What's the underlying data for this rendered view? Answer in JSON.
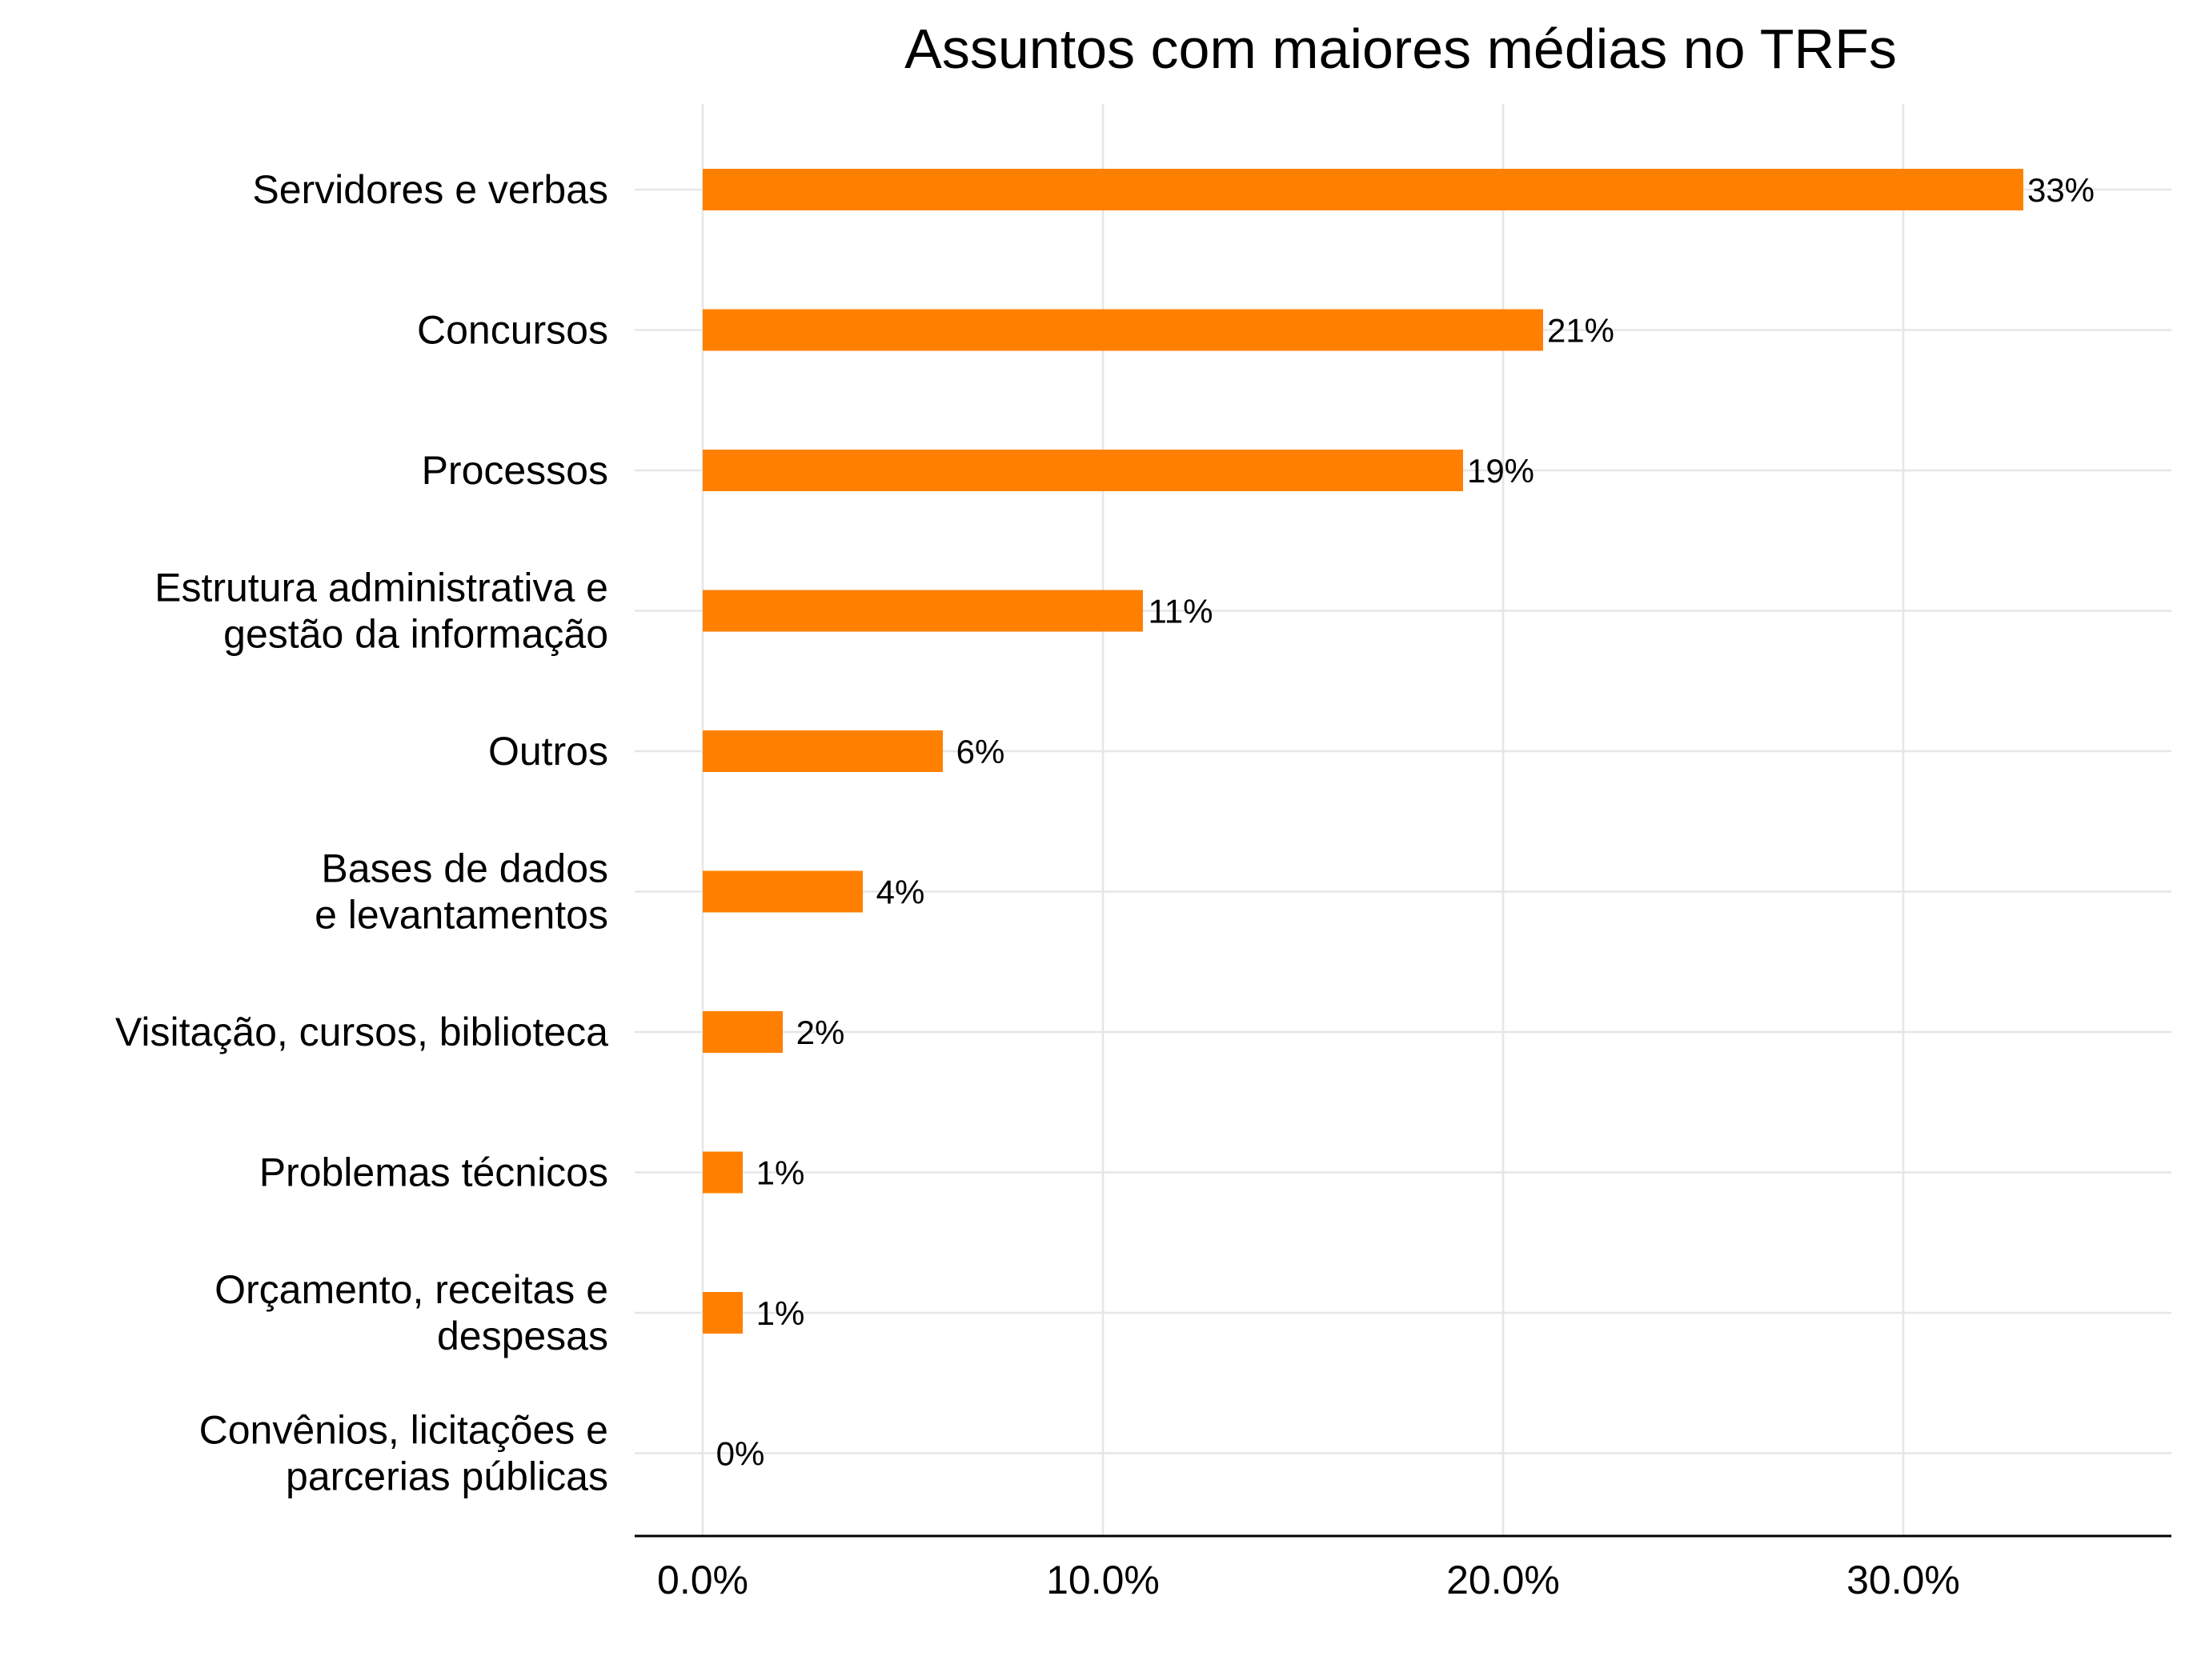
{
  "colors": {
    "bar": "#ff8000",
    "grid": "#e6e6e6",
    "axis": "#000000",
    "text": "#000000"
  },
  "chart_data": {
    "type": "bar",
    "orientation": "horizontal",
    "title": "Assuntos com maiores médias no TRFs",
    "xlabel": "",
    "ylabel": "",
    "categories": [
      [
        "Servidores e verbas"
      ],
      [
        "Concursos"
      ],
      [
        "Processos"
      ],
      [
        "Estrutura administrativa e",
        "gestão da informação"
      ],
      [
        "Outros"
      ],
      [
        "Bases de dados",
        "e levantamentos"
      ],
      [
        "Visitação, cursos, biblioteca"
      ],
      [
        "Problemas técnicos"
      ],
      [
        "Orçamento, receitas e",
        "despesas"
      ],
      [
        "Convênios, licitações e",
        "parcerias públicas"
      ]
    ],
    "values": [
      33,
      21,
      19,
      11,
      6,
      4,
      2,
      1,
      1,
      0
    ],
    "value_labels": [
      "33%",
      "21%",
      "19%",
      "11%",
      "6%",
      "4%",
      "2%",
      "1%",
      "1%",
      "0%"
    ],
    "xlim": [
      -1.7,
      36.7
    ],
    "xticks": [
      0,
      10,
      20,
      30
    ],
    "xtick_labels": [
      "0.0%",
      "10.0%",
      "20.0%",
      "30.0%"
    ],
    "grid": true,
    "legend": "none"
  }
}
